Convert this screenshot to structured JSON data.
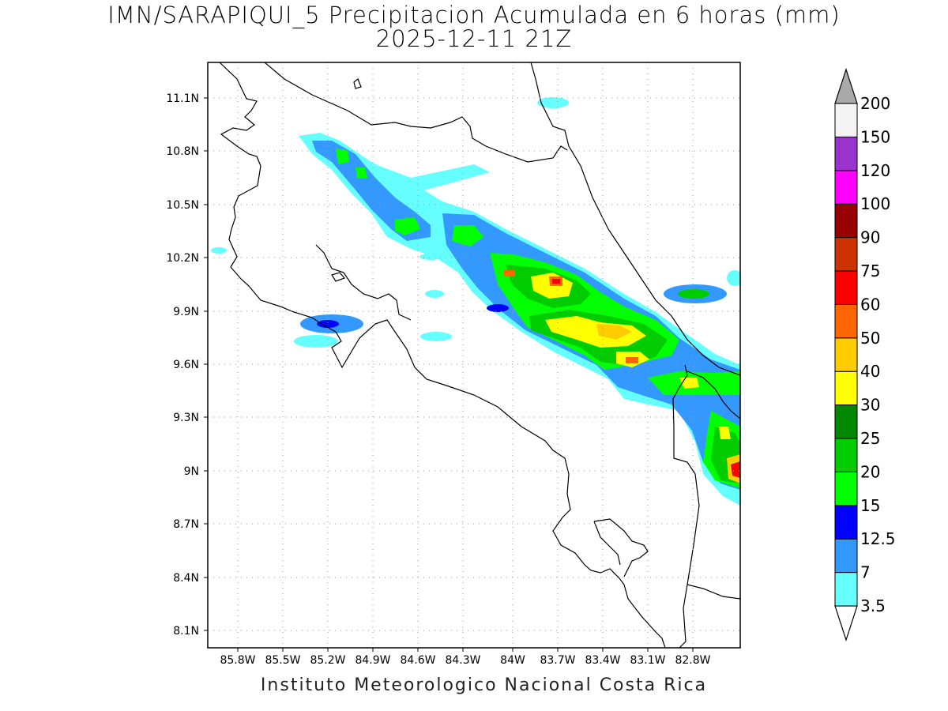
{
  "title": {
    "line1": "IMN/SARAPIQUI_5 Precipitacion Acumulada en 6 horas (mm)",
    "line2": "2025-12-11 21Z"
  },
  "footer": "Instituto Meteorologico Nacional Costa Rica",
  "map": {
    "lon_range": [
      -86.15,
      -82.6
    ],
    "lat_range": [
      8.0,
      11.3
    ],
    "lat_ticks": [
      "11.1N",
      "10.8N",
      "10.5N",
      "10.2N",
      "9.9N",
      "9.6N",
      "9.3N",
      "9N",
      "8.7N",
      "8.4N",
      "8.1N"
    ],
    "lon_ticks": [
      "85.8W",
      "85.5W",
      "85.2W",
      "84.9W",
      "84.6W",
      "84.3W",
      "84W",
      "83.7W",
      "83.4W",
      "83.1W",
      "82.8W"
    ],
    "grid": "dotted"
  },
  "colorbar": {
    "levels": [
      {
        "label": "3.5",
        "color": "#66ffff"
      },
      {
        "label": "7",
        "color": "#3399ff"
      },
      {
        "label": "12.5",
        "color": "#0000ff"
      },
      {
        "label": "15",
        "color": "#00ff00"
      },
      {
        "label": "20",
        "color": "#00cc00"
      },
      {
        "label": "25",
        "color": "#008800"
      },
      {
        "label": "30",
        "color": "#ffff00"
      },
      {
        "label": "40",
        "color": "#ffcc00"
      },
      {
        "label": "50",
        "color": "#ff6600"
      },
      {
        "label": "60",
        "color": "#ff0000"
      },
      {
        "label": "75",
        "color": "#cc3300"
      },
      {
        "label": "90",
        "color": "#990000"
      },
      {
        "label": "100",
        "color": "#ff00ff"
      },
      {
        "label": "120",
        "color": "#9933cc"
      },
      {
        "label": "150",
        "color": "#f4f4f4"
      },
      {
        "label": "200",
        "color": "#aaaaaa"
      }
    ]
  }
}
